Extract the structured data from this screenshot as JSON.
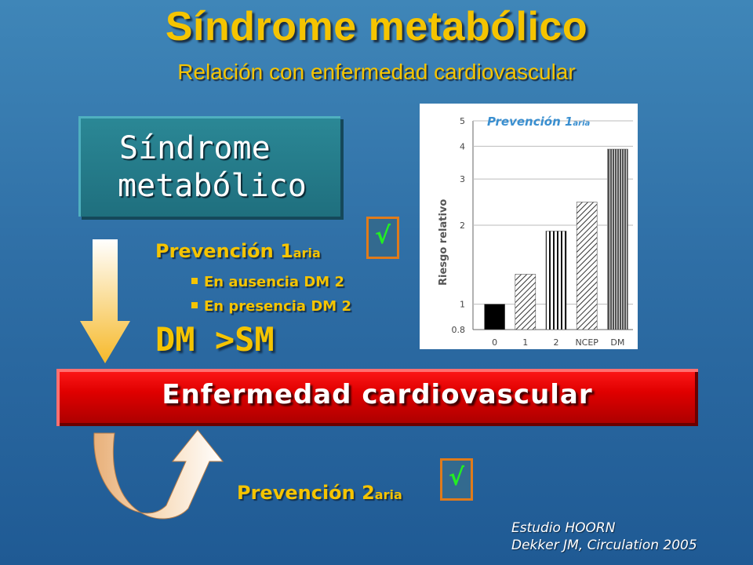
{
  "header": {
    "title": "Síndrome metabólico",
    "subtitle": "Relación con enfermedad cardiovascular"
  },
  "sm_box": {
    "line1": "Síndrome",
    "line2": "metabólico"
  },
  "prevention_1": {
    "label_main": "Prevención 1",
    "label_sub": "aria",
    "check_glyph": "√",
    "bullets": [
      "En ausencia DM 2",
      "En presencia DM 2"
    ]
  },
  "dm_vs_sm": "DM >SM",
  "cvd_banner": "Enfermedad cardiovascular",
  "prevention_2": {
    "label_main": "Prevención 2",
    "label_sub": "aria",
    "check_glyph": "√"
  },
  "source": {
    "line1": "Estudio HOORN",
    "line2": "Dekker JM, Circulation 2005"
  },
  "colors": {
    "accent": "#f5c400",
    "banner_red": "#e00000",
    "check_green": "#22ee22",
    "check_border": "#e07b1a"
  },
  "chart_data": {
    "type": "bar",
    "title": "Prevención 1",
    "title_sub": "aria",
    "ylabel": "Riesgo relativo",
    "xlabel": "",
    "y_scale": "log",
    "ylim": [
      0.8,
      5
    ],
    "yticks": [
      0.8,
      1,
      2,
      3,
      4,
      5
    ],
    "grid": true,
    "categories": [
      "0",
      "1",
      "2",
      "NCEP",
      "DM"
    ],
    "values": [
      1.0,
      1.3,
      1.9,
      2.45,
      3.9
    ],
    "patterns": [
      "solid-black",
      "diagonal-hatch",
      "vertical-stripes",
      "diagonal-hatch",
      "vertical-stripes-dense"
    ]
  }
}
